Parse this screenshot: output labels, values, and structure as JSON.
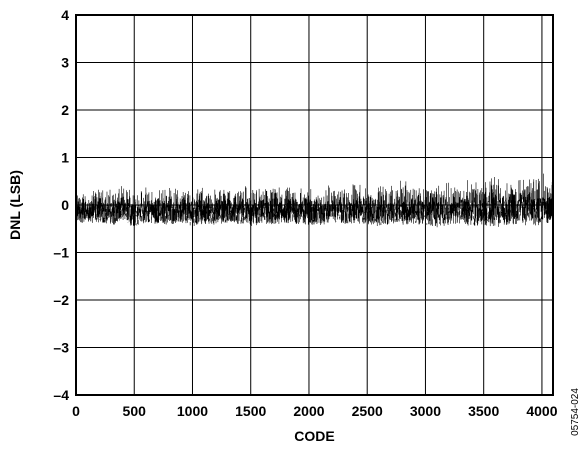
{
  "chart_data": {
    "type": "line",
    "title": "",
    "xlabel": "CODE",
    "ylabel": "DNL (LSB)",
    "xlim": [
      0,
      4095
    ],
    "ylim": [
      -4,
      4
    ],
    "x_ticks": [
      0,
      500,
      1000,
      1500,
      2000,
      2500,
      3000,
      3500,
      4000
    ],
    "x_tick_labels": [
      "0",
      "500",
      "1000",
      "1500",
      "2000",
      "2500",
      "3000",
      "3500",
      "4000"
    ],
    "y_ticks": [
      4,
      3,
      2,
      1,
      0,
      -1,
      -2,
      -3,
      -4
    ],
    "y_tick_labels": [
      "4",
      "3",
      "2",
      "1",
      "0",
      "–1",
      "–2",
      "–3",
      "–4"
    ],
    "grid": true,
    "line_color": "#000000",
    "series": [
      {
        "x": [
          0,
          100,
          200,
          300,
          400,
          500,
          600,
          700,
          800,
          900,
          1000,
          1100,
          1200,
          1300,
          1400,
          1500,
          1600,
          1700,
          1800,
          1900,
          2000,
          2100,
          2200,
          2300,
          2400,
          2500,
          2600,
          2700,
          2800,
          2900,
          3000,
          3100,
          3200,
          3300,
          3400,
          3500,
          3600,
          3700,
          3800,
          3900,
          4000,
          4095
        ],
        "upper": [
          0.3,
          0.35,
          0.4,
          0.38,
          0.45,
          0.42,
          0.4,
          0.35,
          0.5,
          0.4,
          0.45,
          0.4,
          0.38,
          0.45,
          0.42,
          0.5,
          0.4,
          0.45,
          0.4,
          0.48,
          0.42,
          0.45,
          0.5,
          0.4,
          0.55,
          0.45,
          0.5,
          0.48,
          0.55,
          0.5,
          0.55,
          0.6,
          0.5,
          0.55,
          0.6,
          0.55,
          0.75,
          0.6,
          0.65,
          0.7,
          0.75,
          0.6
        ],
        "lower": [
          -0.35,
          -0.4,
          -0.38,
          -0.42,
          -0.4,
          -0.45,
          -0.38,
          -0.4,
          -0.42,
          -0.38,
          -0.45,
          -0.4,
          -0.42,
          -0.38,
          -0.4,
          -0.45,
          -0.4,
          -0.42,
          -0.38,
          -0.4,
          -0.42,
          -0.45,
          -0.38,
          -0.4,
          -0.42,
          -0.4,
          -0.45,
          -0.4,
          -0.42,
          -0.4,
          -0.45,
          -0.48,
          -0.42,
          -0.4,
          -0.45,
          -0.42,
          -0.48,
          -0.42,
          -0.4,
          -0.45,
          -0.42,
          -0.35
        ]
      }
    ]
  },
  "figure_id": "05754-024"
}
